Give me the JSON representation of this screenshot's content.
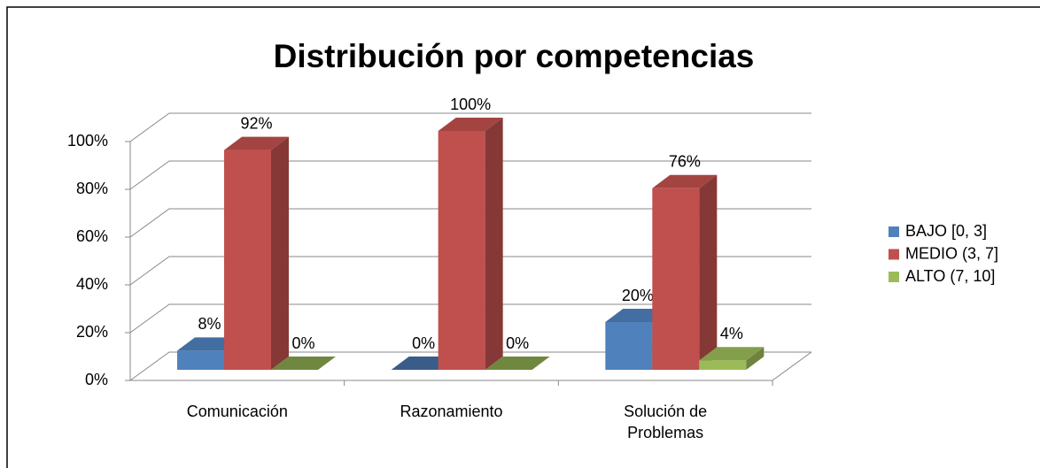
{
  "chart_data": {
    "type": "bar3d",
    "title": "Distribución por competencias",
    "categories": [
      "Comunicación",
      "Razonamiento",
      "Solución de Problemas"
    ],
    "series": [
      {
        "name": "BAJO [0, 3]",
        "color": "#4f81bd",
        "values": [
          8,
          0,
          20
        ],
        "value_labels": [
          "8%",
          "0%",
          "20%"
        ]
      },
      {
        "name": "MEDIO (3, 7]",
        "color": "#c0504d",
        "values": [
          92,
          100,
          76
        ],
        "value_labels": [
          "92%",
          "100%",
          "76%"
        ]
      },
      {
        "name": "ALTO (7, 10]",
        "color": "#9bbb59",
        "values": [
          0,
          0,
          4
        ],
        "value_labels": [
          "0%",
          "0%",
          "4%"
        ]
      }
    ],
    "ylim": [
      0,
      100
    ],
    "yticks": [
      {
        "value": 0,
        "label": "0%"
      },
      {
        "value": 20,
        "label": "20%"
      },
      {
        "value": 40,
        "label": "40%"
      },
      {
        "value": 60,
        "label": "60%"
      },
      {
        "value": 80,
        "label": "80%"
      },
      {
        "value": 100,
        "label": "100%"
      }
    ],
    "grid": true,
    "legend": "right"
  }
}
